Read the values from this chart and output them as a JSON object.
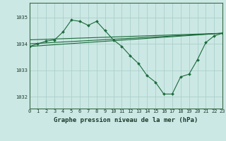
{
  "title": "Graphe pression niveau de la mer (hPa)",
  "bg_color": "#cce8e4",
  "grid_color": "#aacfcb",
  "line_color": "#1a6b3a",
  "xlim": [
    0,
    23
  ],
  "ylim": [
    1031.55,
    1035.55
  ],
  "yticks": [
    1032,
    1033,
    1034,
    1035
  ],
  "xticks": [
    0,
    1,
    2,
    3,
    4,
    5,
    6,
    7,
    8,
    9,
    10,
    11,
    12,
    13,
    14,
    15,
    16,
    17,
    18,
    19,
    20,
    21,
    22,
    23
  ],
  "series1_x": [
    0,
    1,
    2,
    3,
    4,
    5,
    6,
    7,
    8,
    9,
    10,
    11,
    12,
    13,
    14,
    15,
    16,
    17,
    18,
    19,
    20,
    21,
    22,
    23
  ],
  "series1_y": [
    1033.9,
    1034.0,
    1034.1,
    1034.15,
    1034.45,
    1034.9,
    1034.85,
    1034.7,
    1034.85,
    1034.5,
    1034.15,
    1033.9,
    1033.55,
    1033.25,
    1032.8,
    1032.55,
    1032.1,
    1032.1,
    1032.75,
    1032.85,
    1033.4,
    1034.05,
    1034.3,
    1034.4
  ],
  "series2_x": [
    0,
    23
  ],
  "series2_y": [
    1034.15,
    1034.4
  ],
  "series3_x": [
    0,
    23
  ],
  "series3_y": [
    1034.0,
    1034.4
  ],
  "series4_x": [
    0,
    23
  ],
  "series4_y": [
    1033.9,
    1034.4
  ],
  "marker": "D",
  "marker_size": 2.0,
  "linewidth": 0.8,
  "title_fontsize": 6.5,
  "tick_fontsize": 5.0,
  "ylabel_fontsize": 5.0
}
